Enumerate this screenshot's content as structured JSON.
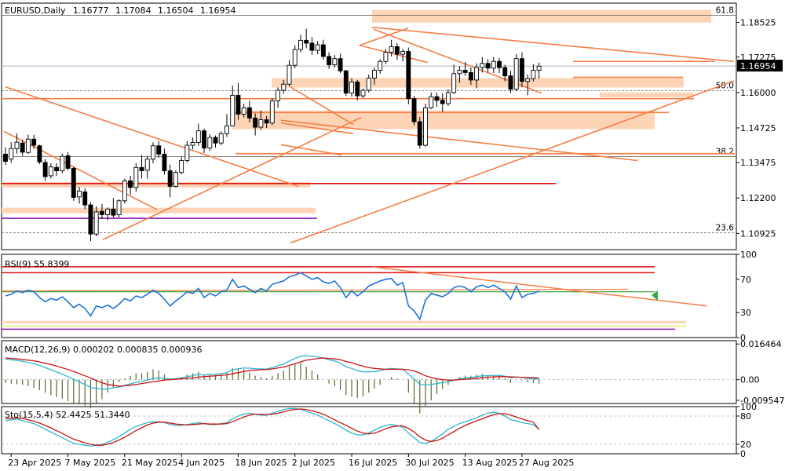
{
  "chart_data": [
    {
      "type": "candlestick",
      "title": "EURUSD,Daily",
      "ohlc": [
        "1.16777",
        "1.17084",
        "1.16504",
        "1.16954"
      ],
      "last_price": "1.16954",
      "ylim": [
        1.1034,
        1.1922
      ],
      "yticks": [
        "1.18525",
        "1.17275",
        "1.16000",
        "1.14725",
        "1.13475",
        "1.12200",
        "1.10925"
      ],
      "ytick_values": [
        1.18525,
        1.17275,
        1.16,
        1.14725,
        1.13475,
        1.122,
        1.10925
      ],
      "xticks": [
        "23 Apr 2025",
        "7 May 2025",
        "21 May 2025",
        "4 Jun 2025",
        "18 Jun 2025",
        "2 Jul 2025",
        "16 Jul 2025",
        "30 Jul 2025",
        "13 Aug 2025",
        "27 Aug 2025"
      ],
      "xtick_bar_index": [
        1,
        11,
        21,
        31,
        41,
        51,
        61,
        71,
        81,
        91
      ],
      "fib_levels": [
        {
          "label": "61.8",
          "price": 1.1878
        },
        {
          "label": "50.0",
          "price": 1.1607
        },
        {
          "label": "38.2",
          "price": 1.1369
        },
        {
          "label": "23.6",
          "price": 1.1095
        }
      ],
      "candles": [
        [
          1.1378,
          1.1402,
          1.1339,
          1.1352
        ],
        [
          1.136,
          1.1421,
          1.1347,
          1.1398
        ],
        [
          1.1398,
          1.1452,
          1.138,
          1.1421
        ],
        [
          1.1418,
          1.143,
          1.1372,
          1.1385
        ],
        [
          1.1384,
          1.1448,
          1.1378,
          1.1432
        ],
        [
          1.1432,
          1.1448,
          1.1398,
          1.141
        ],
        [
          1.1408,
          1.1412,
          1.1342,
          1.135
        ],
        [
          1.1348,
          1.136,
          1.1282,
          1.1297
        ],
        [
          1.13,
          1.1345,
          1.1291,
          1.1332
        ],
        [
          1.133,
          1.1345,
          1.13,
          1.1318
        ],
        [
          1.1318,
          1.138,
          1.1309,
          1.137
        ],
        [
          1.1372,
          1.1385,
          1.132,
          1.1327
        ],
        [
          1.1327,
          1.1333,
          1.121,
          1.1222
        ],
        [
          1.1224,
          1.126,
          1.12,
          1.1245
        ],
        [
          1.1242,
          1.1255,
          1.118,
          1.1195
        ],
        [
          1.1195,
          1.1205,
          1.1065,
          1.109
        ],
        [
          1.109,
          1.119,
          1.1082,
          1.117
        ],
        [
          1.1172,
          1.1198,
          1.1145,
          1.116
        ],
        [
          1.116,
          1.1186,
          1.114,
          1.118
        ],
        [
          1.118,
          1.122,
          1.115,
          1.1158
        ],
        [
          1.116,
          1.1215,
          1.115,
          1.121
        ],
        [
          1.121,
          1.129,
          1.12,
          1.1282
        ],
        [
          1.1282,
          1.13,
          1.1232,
          1.1258
        ],
        [
          1.1258,
          1.1345,
          1.1242,
          1.133
        ],
        [
          1.133,
          1.1375,
          1.129,
          1.1318
        ],
        [
          1.132,
          1.1372,
          1.129,
          1.136
        ],
        [
          1.136,
          1.142,
          1.1345,
          1.1408
        ],
        [
          1.1408,
          1.1425,
          1.1365,
          1.1378
        ],
        [
          1.1378,
          1.1398,
          1.1305,
          1.1318
        ],
        [
          1.1318,
          1.134,
          1.1222,
          1.1262
        ],
        [
          1.1262,
          1.132,
          1.1258,
          1.1312
        ],
        [
          1.1312,
          1.1368,
          1.1305,
          1.1355
        ],
        [
          1.1355,
          1.1425,
          1.1348,
          1.141
        ],
        [
          1.141,
          1.1438,
          1.1395,
          1.142
        ],
        [
          1.142,
          1.1488,
          1.1408,
          1.1462
        ],
        [
          1.1462,
          1.147,
          1.1382,
          1.14
        ],
        [
          1.14,
          1.145,
          1.139,
          1.1438
        ],
        [
          1.1438,
          1.1445,
          1.1402,
          1.1418
        ],
        [
          1.1418,
          1.146,
          1.141,
          1.1452
        ],
        [
          1.1452,
          1.1522,
          1.144,
          1.148
        ],
        [
          1.148,
          1.1625,
          1.1478,
          1.159
        ],
        [
          1.159,
          1.1635,
          1.1502,
          1.1522
        ],
        [
          1.1522,
          1.156,
          1.151,
          1.1545
        ],
        [
          1.1545,
          1.157,
          1.1492,
          1.1508
        ],
        [
          1.1508,
          1.1525,
          1.1445,
          1.1475
        ],
        [
          1.1475,
          1.1535,
          1.1465,
          1.1502
        ],
        [
          1.1502,
          1.1515,
          1.1472,
          1.149
        ],
        [
          1.149,
          1.158,
          1.1482,
          1.157
        ],
        [
          1.157,
          1.1618,
          1.1545,
          1.1608
        ],
        [
          1.1608,
          1.1645,
          1.1595,
          1.163
        ],
        [
          1.163,
          1.1718,
          1.1622,
          1.1698
        ],
        [
          1.1698,
          1.177,
          1.1688,
          1.1755
        ],
        [
          1.1755,
          1.1808,
          1.1745,
          1.1788
        ],
        [
          1.1788,
          1.183,
          1.176,
          1.1778
        ],
        [
          1.1778,
          1.18,
          1.1735,
          1.1752
        ],
        [
          1.1752,
          1.1785,
          1.1738,
          1.1772
        ],
        [
          1.1772,
          1.179,
          1.1718,
          1.173
        ],
        [
          1.173,
          1.1745,
          1.1685,
          1.17
        ],
        [
          1.17,
          1.1735,
          1.169,
          1.1722
        ],
        [
          1.1722,
          1.174,
          1.167,
          1.1678
        ],
        [
          1.1678,
          1.1682,
          1.1588,
          1.1598
        ],
        [
          1.1598,
          1.1652,
          1.1585,
          1.1638
        ],
        [
          1.1638,
          1.1645,
          1.1572,
          1.1588
        ],
        [
          1.1588,
          1.1615,
          1.158,
          1.1608
        ],
        [
          1.1608,
          1.1665,
          1.16,
          1.1652
        ],
        [
          1.1652,
          1.169,
          1.1628,
          1.168
        ],
        [
          1.168,
          1.172,
          1.1668,
          1.1712
        ],
        [
          1.1712,
          1.1758,
          1.1702,
          1.1745
        ],
        [
          1.1745,
          1.179,
          1.173,
          1.1765
        ],
        [
          1.1765,
          1.1778,
          1.1718,
          1.1738
        ],
        [
          1.1738,
          1.1758,
          1.1712,
          1.1748
        ],
        [
          1.1748,
          1.1762,
          1.1558,
          1.1578
        ],
        [
          1.1578,
          1.1588,
          1.1482,
          1.1495
        ],
        [
          1.1495,
          1.1512,
          1.1398,
          1.141
        ],
        [
          1.141,
          1.156,
          1.1405,
          1.1545
        ],
        [
          1.1545,
          1.16,
          1.154,
          1.1585
        ],
        [
          1.1585,
          1.16,
          1.1548,
          1.1572
        ],
        [
          1.1572,
          1.1598,
          1.153,
          1.156
        ],
        [
          1.156,
          1.1612,
          1.1552,
          1.16
        ],
        [
          1.16,
          1.17,
          1.1595,
          1.1668
        ],
        [
          1.1668,
          1.1695,
          1.1635,
          1.168
        ],
        [
          1.168,
          1.171,
          1.166,
          1.1672
        ],
        [
          1.1672,
          1.169,
          1.1628,
          1.1645
        ],
        [
          1.1645,
          1.1705,
          1.1615,
          1.169
        ],
        [
          1.169,
          1.1728,
          1.1672,
          1.1705
        ],
        [
          1.1705,
          1.172,
          1.1672,
          1.1688
        ],
        [
          1.1688,
          1.1728,
          1.167,
          1.1712
        ],
        [
          1.1712,
          1.1725,
          1.167,
          1.169
        ],
        [
          1.169,
          1.17,
          1.164,
          1.166
        ],
        [
          1.166,
          1.1678,
          1.1598,
          1.1612
        ],
        [
          1.1612,
          1.1738,
          1.1605,
          1.1722
        ],
        [
          1.1722,
          1.1745,
          1.162,
          1.164
        ],
        [
          1.164,
          1.1665,
          1.159,
          1.165
        ],
        [
          1.165,
          1.1702,
          1.164,
          1.168
        ],
        [
          1.168,
          1.1708,
          1.165,
          1.1695
        ]
      ]
    },
    {
      "type": "line",
      "title": "RSI(9) 55.8399",
      "ylim": [
        0,
        100
      ],
      "yticks": [
        "100",
        "70",
        "30",
        "0"
      ],
      "ytick_values": [
        100,
        70,
        30,
        0
      ],
      "series": [
        {
          "values": [
            50,
            52,
            56,
            54,
            57,
            55,
            48,
            43,
            47,
            45,
            49,
            43,
            36,
            40,
            35,
            26,
            38,
            36,
            39,
            35,
            40,
            47,
            44,
            50,
            48,
            52,
            57,
            53,
            46,
            38,
            44,
            49,
            55,
            53,
            59,
            48,
            53,
            50,
            55,
            57,
            70,
            60,
            62,
            58,
            54,
            59,
            56,
            64,
            66,
            68,
            73,
            75,
            78,
            74,
            70,
            72,
            67,
            65,
            68,
            60,
            48,
            56,
            50,
            55,
            62,
            65,
            68,
            70,
            71,
            63,
            66,
            38,
            32,
            22,
            45,
            53,
            51,
            49,
            53,
            60,
            62,
            60,
            55,
            61,
            63,
            60,
            63,
            59,
            55,
            46,
            62,
            48,
            52,
            53,
            56
          ]
        }
      ]
    },
    {
      "type": "line",
      "title": "MACD(12,26,9) 0.000202 0.000835 0.000936",
      "ylim": [
        -0.011,
        0.018
      ],
      "yticks": [
        "0.016464",
        "0.00",
        "-0.009547"
      ],
      "ytick_values": [
        0.016464,
        0,
        -0.009547
      ],
      "series": [
        {
          "values": [
            0.0095,
            0.0092,
            0.0089,
            0.0085,
            0.008,
            0.0074,
            0.0066,
            0.0056,
            0.0046,
            0.0036,
            0.0026,
            0.0014,
            0.0002,
            -0.001,
            -0.0022,
            -0.0036,
            -0.004,
            -0.0044,
            -0.0042,
            -0.0038,
            -0.0034,
            -0.0026,
            -0.002,
            -0.0012,
            -0.0008,
            -0.0002,
            0.0006,
            0.0008,
            0.0006,
            0.0002,
            0.0004,
            0.0008,
            0.0014,
            0.0018,
            0.0024,
            0.0022,
            0.0024,
            0.0025,
            0.0028,
            0.0032,
            0.0046,
            0.005,
            0.0054,
            0.0053,
            0.005,
            0.005,
            0.0049,
            0.0056,
            0.0064,
            0.0072,
            0.0086,
            0.0098,
            0.0108,
            0.011,
            0.0108,
            0.0106,
            0.01,
            0.0092,
            0.0086,
            0.0076,
            0.006,
            0.0052,
            0.0042,
            0.0036,
            0.0036,
            0.0038,
            0.0042,
            0.0048,
            0.0052,
            0.005,
            0.0048,
            0.0026,
            0.0004,
            -0.0022,
            -0.0024,
            -0.0022,
            -0.0018,
            -0.0014,
            -0.001,
            -0.0002,
            0.0004,
            0.0008,
            0.001,
            0.0014,
            0.0018,
            0.0018,
            0.002,
            0.002,
            0.0016,
            0.0008,
            0.0012,
            0.001,
            0.0006,
            0.0004,
            0.0002
          ]
        },
        {
          "values": [
            0.01,
            0.0098,
            0.0096,
            0.0093,
            0.009,
            0.0087,
            0.0082,
            0.0076,
            0.007,
            0.0063,
            0.0055,
            0.0047,
            0.0038,
            0.0028,
            0.0018,
            0.0008,
            -0.0004,
            -0.0014,
            -0.0022,
            -0.0026,
            -0.003,
            -0.0028,
            -0.0026,
            -0.0022,
            -0.0018,
            -0.0014,
            -0.001,
            -0.0006,
            -0.0002,
            0.0,
            0.0002,
            0.0004,
            0.0006,
            0.0008,
            0.0012,
            0.0014,
            0.0016,
            0.0018,
            0.002,
            0.0022,
            0.0028,
            0.0032,
            0.0038,
            0.0042,
            0.0044,
            0.0046,
            0.0047,
            0.005,
            0.0054,
            0.0058,
            0.0066,
            0.0074,
            0.0082,
            0.009,
            0.0094,
            0.0098,
            0.01,
            0.0098,
            0.0096,
            0.0092,
            0.0084,
            0.0078,
            0.007,
            0.0062,
            0.0056,
            0.0052,
            0.005,
            0.0048,
            0.0048,
            0.0048,
            0.0048,
            0.0046,
            0.004,
            0.003,
            0.0018,
            0.001,
            0.0004,
            0.0,
            -0.0002,
            -0.0002,
            0.0,
            0.0002,
            0.0004,
            0.0006,
            0.0009,
            0.0011,
            0.0013,
            0.0014,
            0.0014,
            0.0013,
            0.0012,
            0.0011,
            0.001,
            0.0009,
            0.0008
          ]
        }
      ]
    },
    {
      "type": "line",
      "title": "Sto(15,5,4) 52.4425 51.3440",
      "ylim": [
        0,
        100
      ],
      "yticks": [
        "100",
        "80",
        "20",
        "0"
      ],
      "ytick_values": [
        100,
        80,
        20,
        0
      ],
      "series": [
        {
          "values": [
            70,
            72,
            74,
            70,
            67,
            64,
            58,
            52,
            46,
            40,
            34,
            28,
            22,
            20,
            18,
            16,
            18,
            20,
            24,
            30,
            36,
            44,
            52,
            58,
            62,
            66,
            68,
            68,
            66,
            62,
            60,
            60,
            62,
            64,
            66,
            64,
            62,
            62,
            64,
            66,
            74,
            80,
            84,
            86,
            84,
            82,
            82,
            86,
            90,
            94,
            96,
            96,
            94,
            90,
            86,
            82,
            76,
            70,
            64,
            58,
            50,
            44,
            40,
            40,
            44,
            50,
            56,
            60,
            62,
            60,
            56,
            44,
            34,
            24,
            22,
            26,
            34,
            42,
            52,
            58,
            64,
            68,
            72,
            76,
            82,
            86,
            88,
            86,
            80,
            72,
            70,
            66,
            64,
            62,
            52
          ]
        },
        {
          "values": [
            74,
            75,
            76,
            75,
            72,
            69,
            65,
            60,
            55,
            49,
            43,
            37,
            31,
            27,
            23,
            20,
            18,
            18,
            20,
            24,
            29,
            35,
            42,
            49,
            55,
            61,
            65,
            67,
            67,
            65,
            63,
            62,
            61,
            62,
            63,
            64,
            63,
            63,
            63,
            64,
            68,
            73,
            78,
            82,
            84,
            84,
            83,
            84,
            86,
            89,
            92,
            94,
            95,
            94,
            91,
            88,
            84,
            78,
            72,
            66,
            60,
            54,
            48,
            44,
            42,
            44,
            48,
            53,
            57,
            59,
            59,
            54,
            46,
            36,
            29,
            26,
            28,
            33,
            40,
            47,
            54,
            60,
            65,
            70,
            74,
            79,
            83,
            85,
            85,
            82,
            78,
            74,
            70,
            67,
            51
          ]
        }
      ]
    }
  ],
  "colors": {
    "candle_up": "#ffffff",
    "candle_down": "#000000",
    "trendline": "#f47e45",
    "zone": "#fdd4b5",
    "red_level": "#e01010",
    "purple_level": "#8a1ab2",
    "rsi_line": "#1e73d8",
    "macd_main": "#2eb6cf",
    "macd_signal": "#c81414",
    "macd_hist": "#556b2f",
    "sto_main": "#2eb6cf",
    "sto_signal": "#c81414",
    "grid": "#d9d9d9"
  },
  "icons": [
    "triangle-marker-icon"
  ]
}
